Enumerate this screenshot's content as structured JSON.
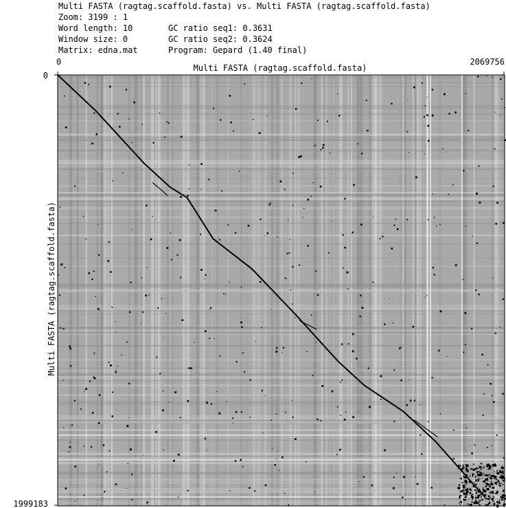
{
  "header": {
    "title": "Multi FASTA (ragtag.scaffold.fasta) vs. Multi FASTA (ragtag.scaffold.fasta)",
    "zoom": "Zoom: 3199 : 1",
    "word_length": "Word length: 10",
    "window_size": "Window size: 0",
    "matrix": "Matrix: edna.mat",
    "gc_seq1": "GC ratio seq1: 0.3631",
    "gc_seq2": "GC ratio seq2: 0.3624",
    "program": "Program: Gepard (1.40 final)"
  },
  "chart_data": {
    "type": "dotplot",
    "xlabel": "Multi FASTA (ragtag.scaffold.fasta)",
    "ylabel": "Multi FASTA (ragtag.scaffold.fasta)",
    "xlim": [
      0,
      2069756
    ],
    "ylim": [
      0,
      1999183
    ],
    "x_tick_labels": [
      "0",
      "2069756"
    ],
    "y_tick_labels": [
      "0",
      "1999183"
    ],
    "background_color": "#a9a9a9",
    "dot_color": "#000000",
    "main_diagonal": [
      [
        0,
        0
      ],
      [
        180000,
        170000
      ],
      [
        400000,
        410000
      ],
      [
        520000,
        520000
      ],
      [
        600000,
        570000
      ],
      [
        720000,
        760000
      ],
      [
        900000,
        900000
      ],
      [
        1100000,
        1110000
      ],
      [
        1300000,
        1330000
      ],
      [
        1420000,
        1440000
      ],
      [
        1600000,
        1560000
      ],
      [
        1750000,
        1700000
      ],
      [
        1900000,
        1870000
      ],
      [
        1980000,
        1960000
      ]
    ],
    "diagonal_segments": [
      {
        "x": [
          440000,
          510000
        ],
        "y": [
          500000,
          560000
        ]
      },
      {
        "x": [
          1120000,
          1200000
        ],
        "y": [
          1140000,
          1180000
        ]
      },
      {
        "x": [
          1650000,
          1760000
        ],
        "y": [
          1600000,
          1680000
        ]
      }
    ],
    "dense_region": {
      "x": [
        1850000,
        2069756
      ],
      "y": [
        1800000,
        1999183
      ]
    }
  }
}
